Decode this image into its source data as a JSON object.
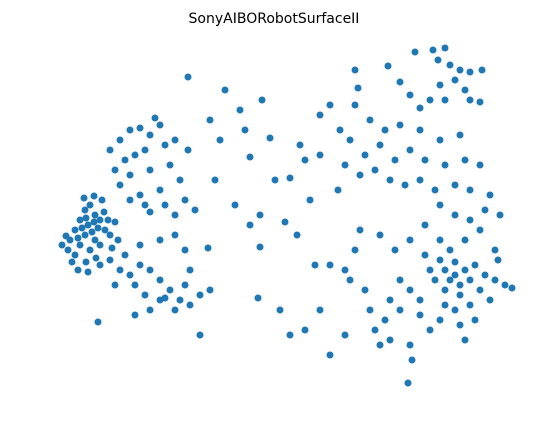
{
  "chart_data": {
    "type": "scatter",
    "title": "SonyAIBORobotSurfaceII",
    "color": "#1f77b4",
    "xlim": [
      50,
      525
    ],
    "ylim": [
      40,
      400
    ],
    "x": [
      70,
      75,
      80,
      85,
      90,
      95,
      100,
      105,
      110,
      85,
      80,
      75,
      90,
      95,
      100,
      88,
      92,
      78,
      82,
      98,
      104,
      108,
      68,
      72,
      86,
      96,
      112,
      84,
      94,
      102,
      66,
      62,
      78,
      88,
      100,
      110,
      118,
      115,
      86,
      94,
      110,
      120,
      130,
      140,
      150,
      160,
      165,
      145,
      135,
      125,
      115,
      130,
      150,
      170,
      180,
      160,
      140,
      120,
      155,
      175,
      188,
      145,
      165,
      185,
      195,
      130,
      150,
      175,
      120,
      130,
      140,
      150,
      160,
      170,
      180,
      190,
      200,
      210,
      135,
      145,
      160,
      175,
      135,
      150,
      165,
      185,
      190,
      115,
      125,
      140,
      160,
      175,
      185,
      98,
      200,
      188,
      225,
      240,
      262,
      210,
      220,
      245,
      270,
      250,
      215,
      235,
      260,
      250,
      285,
      297,
      310,
      275,
      290,
      305,
      320,
      330,
      320,
      340,
      300,
      258,
      280,
      305,
      290,
      320,
      330,
      315,
      345,
      330,
      345,
      208,
      260,
      355,
      388,
      400,
      415,
      433,
      445,
      438,
      450,
      460,
      470,
      455,
      465,
      482,
      440,
      430,
      445,
      420,
      410,
      358,
      355,
      370,
      385,
      400,
      420,
      440,
      460,
      480,
      470,
      350,
      365,
      380,
      395,
      410,
      425,
      445,
      465,
      480,
      345,
      360,
      375,
      390,
      405,
      420,
      435,
      455,
      470,
      490,
      338,
      440,
      445,
      450,
      455,
      460,
      465,
      470,
      445,
      435,
      430,
      425,
      455,
      460,
      475,
      485,
      495,
      505,
      512,
      480,
      490,
      470,
      455,
      440,
      460,
      465,
      420,
      410,
      400,
      390,
      400,
      385,
      375,
      380,
      390,
      410,
      412,
      408,
      450,
      440,
      465,
      480,
      495,
      500,
      485,
      470,
      455,
      440,
      425,
      410,
      395,
      380,
      360,
      355,
      350,
      365,
      370,
      420,
      430,
      445,
      475,
      498
    ],
    "y": [
      195,
      205,
      215,
      225,
      230,
      220,
      215,
      205,
      200,
      200,
      190,
      180,
      185,
      195,
      190,
      210,
      203,
      197,
      207,
      207,
      223,
      215,
      185,
      173,
      173,
      177,
      187,
      237,
      239,
      235,
      199,
      190,
      165,
      163,
      170,
      175,
      195,
      213,
      217,
      213,
      285,
      295,
      305,
      307,
      300,
      310,
      290,
      285,
      280,
      275,
      265,
      260,
      265,
      270,
      255,
      245,
      240,
      250,
      317,
      295,
      285,
      230,
      230,
      235,
      225,
      235,
      223,
      220,
      165,
      160,
      170,
      165,
      155,
      145,
      135,
      130,
      140,
      145,
      150,
      140,
      135,
      125,
      120,
      125,
      137,
      150,
      165,
      150,
      180,
      190,
      195,
      200,
      185,
      113,
      100,
      358,
      345,
      325,
      335,
      315,
      295,
      305,
      297,
      278,
      255,
      230,
      220,
      210,
      213,
      200,
      235,
      255,
      257,
      275,
      280,
      330,
      320,
      305,
      290,
      137,
      125,
      105,
      100,
      125,
      170,
      170,
      165,
      80,
      100,
      187,
      188,
      365,
      369,
      353,
      383,
      385,
      387,
      375,
      370,
      365,
      363,
      355,
      345,
      365,
      350,
      335,
      335,
      327,
      340,
      347,
      330,
      315,
      305,
      310,
      305,
      295,
      300,
      333,
      335,
      295,
      280,
      290,
      275,
      285,
      275,
      270,
      275,
      270,
      270,
      260,
      265,
      255,
      250,
      255,
      245,
      250,
      245,
      240,
      245,
      175,
      165,
      155,
      160,
      150,
      165,
      155,
      145,
      155,
      165,
      180,
      173,
      140,
      170,
      160,
      155,
      150,
      147,
      145,
      135,
      130,
      125,
      115,
      110,
      95,
      135,
      145,
      155,
      135,
      125,
      115,
      105,
      90,
      95,
      90,
      75,
      52,
      185,
      195,
      195,
      205,
      185,
      220,
      225,
      215,
      220,
      230,
      210,
      195,
      185,
      200,
      205,
      185,
      155,
      145,
      125,
      120,
      105,
      130,
      115,
      175
    ]
  }
}
